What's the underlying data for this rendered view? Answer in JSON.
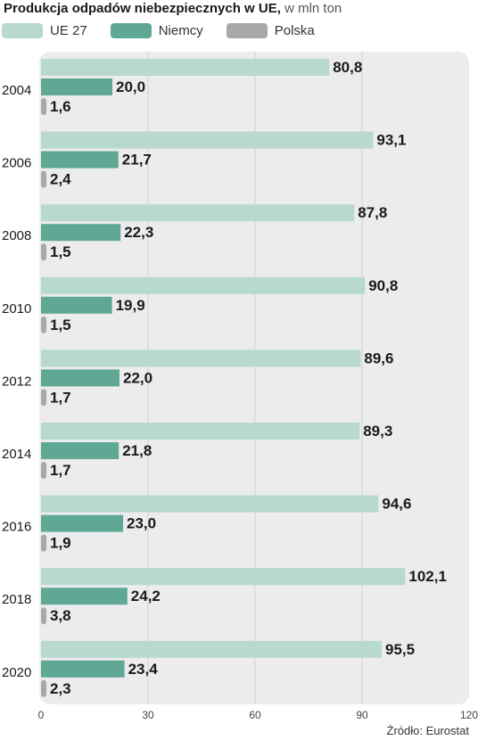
{
  "title_bold": "Produkcja odpadów niebezpiecznych w UE,",
  "title_normal": "w mln ton",
  "source": "Źródło: Eurostat",
  "colors": {
    "eu27": "#b7d9d0",
    "niemcy": "#5fa895",
    "polska": "#a8a8a8",
    "panel": "#ececec"
  },
  "chart_data": {
    "type": "bar",
    "orientation": "horizontal",
    "title": "Produkcja odpadów niebezpiecznych w UE, w mln ton",
    "categories": [
      "2004",
      "2006",
      "2008",
      "2010",
      "2012",
      "2014",
      "2016",
      "2018",
      "2020"
    ],
    "series": [
      {
        "name": "UE 27",
        "values": [
          80.8,
          93.1,
          87.8,
          90.8,
          89.6,
          89.3,
          94.6,
          102.1,
          95.5
        ],
        "labels": [
          "80,8",
          "93,1",
          "87,8",
          "90,8",
          "89,6",
          "89,3",
          "94,6",
          "102,1",
          "95,5"
        ]
      },
      {
        "name": "Niemcy",
        "values": [
          20.0,
          21.7,
          22.3,
          19.9,
          22.0,
          21.8,
          23.0,
          24.2,
          23.4
        ],
        "labels": [
          "20,0",
          "21,7",
          "22,3",
          "19,9",
          "22,0",
          "21,8",
          "23,0",
          "24,2",
          "23,4"
        ]
      },
      {
        "name": "Polska",
        "values": [
          1.6,
          2.4,
          1.5,
          1.5,
          1.7,
          1.7,
          1.9,
          3.8,
          2.3
        ],
        "labels": [
          "1,6",
          "2,4",
          "1,5",
          "1,5",
          "1,7",
          "1,7",
          "1,9",
          "3,8",
          "2,3"
        ]
      }
    ],
    "xlim": [
      0,
      120
    ],
    "xticks": [
      "0",
      "30",
      "60",
      "90",
      "120"
    ],
    "grid": true,
    "legend": "top-left"
  }
}
